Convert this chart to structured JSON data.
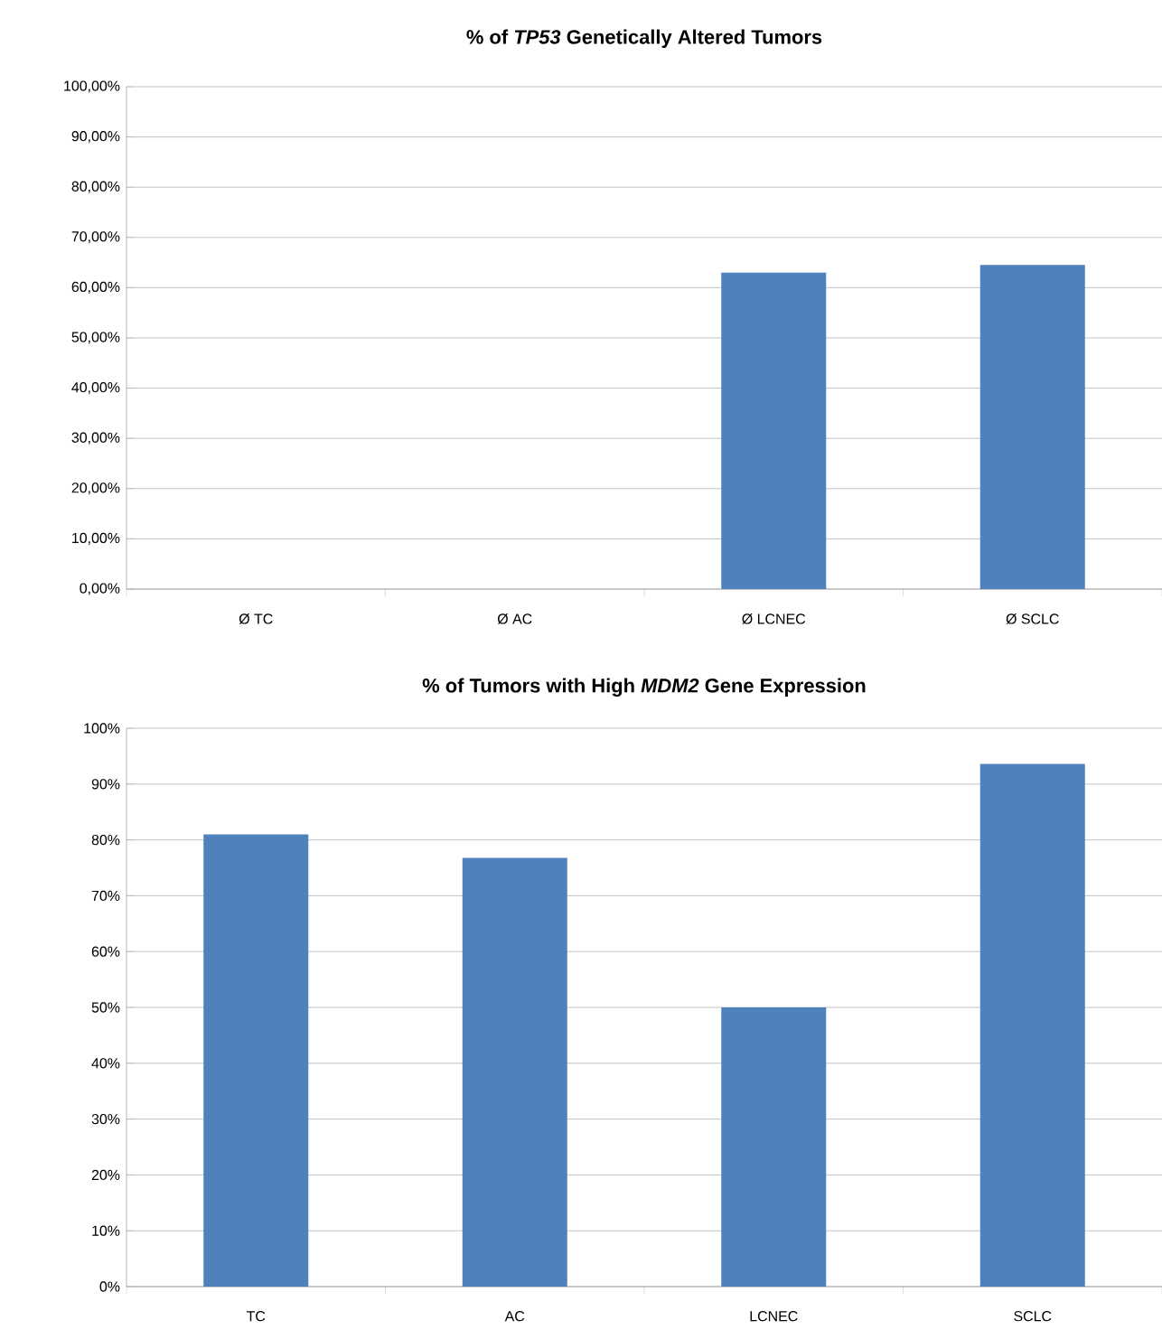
{
  "chart_data": [
    {
      "type": "bar",
      "title": "% of *TP53* Genetically Altered Tumors",
      "categories": [
        "Ø TC",
        "Ø AC",
        "Ø LCNEC",
        "Ø SCLC"
      ],
      "values": [
        0,
        0,
        63.0,
        64.5
      ],
      "color": "#4f81bd",
      "ylim": [
        0,
        100
      ],
      "yticks": [
        {
          "value": 0,
          "label": "0,00%"
        },
        {
          "value": 10,
          "label": "10,00%"
        },
        {
          "value": 20,
          "label": "20,00%"
        },
        {
          "value": 30,
          "label": "30,00%"
        },
        {
          "value": 40,
          "label": "40,00%"
        },
        {
          "value": 50,
          "label": "50,00%"
        },
        {
          "value": 60,
          "label": "60,00%"
        },
        {
          "value": 70,
          "label": "70,00%"
        },
        {
          "value": 80,
          "label": "80,00%"
        },
        {
          "value": 90,
          "label": "90,00%"
        },
        {
          "value": 100,
          "label": "100,00%"
        }
      ],
      "grid": "y"
    },
    {
      "type": "bar",
      "title": "% of Tumors with High *MDM2* Gene Expression",
      "categories": [
        "TC",
        "AC",
        "LCNEC",
        "SCLC"
      ],
      "values": [
        81.0,
        76.8,
        50.0,
        93.6
      ],
      "color": "#4f81bd",
      "ylim": [
        0,
        100
      ],
      "yticks": [
        {
          "value": 0,
          "label": "0%"
        },
        {
          "value": 10,
          "label": "10%"
        },
        {
          "value": 20,
          "label": "20%"
        },
        {
          "value": 30,
          "label": "30%"
        },
        {
          "value": 40,
          "label": "40%"
        },
        {
          "value": 50,
          "label": "50%"
        },
        {
          "value": 60,
          "label": "60%"
        },
        {
          "value": 70,
          "label": "70%"
        },
        {
          "value": 80,
          "label": "80%"
        },
        {
          "value": 90,
          "label": "90%"
        },
        {
          "value": 100,
          "label": "100%"
        }
      ],
      "grid": "y"
    }
  ]
}
